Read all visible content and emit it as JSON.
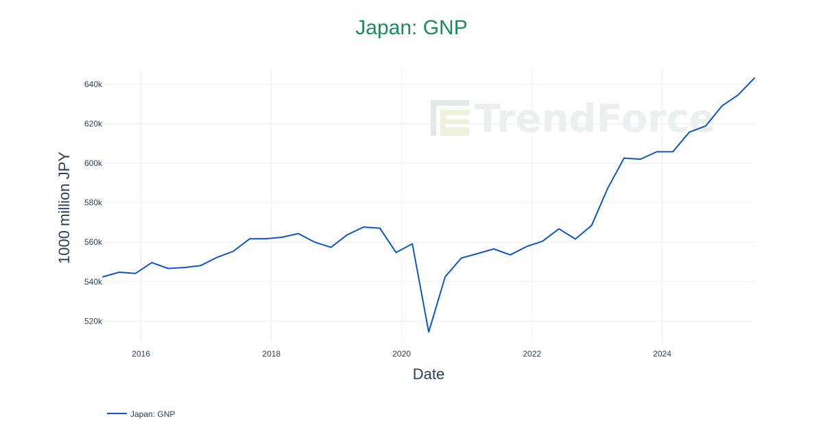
{
  "page": {
    "background": "#ffffff",
    "title_color": "#1d8a5a",
    "line_color": "#0b55c8",
    "grid_color": "#eeeeee",
    "watermark_text": "TrendForce"
  },
  "chart_data": {
    "type": "line",
    "title": "Japan: GNP",
    "xlabel": "Date",
    "ylabel": "1000 million JPY",
    "x_tick_labels": [
      "2016",
      "2018",
      "2020",
      "2022",
      "2024"
    ],
    "y_tick_labels": [
      "520k",
      "540k",
      "560k",
      "580k",
      "600k",
      "620k",
      "640k"
    ],
    "y_ticks": [
      520000,
      540000,
      560000,
      580000,
      600000,
      620000,
      640000
    ],
    "x_ticks": [
      "2016-01-01",
      "2018-01-01",
      "2020-01-01",
      "2022-01-01",
      "2024-01-01"
    ],
    "xlim": [
      "2015-06-01",
      "2025-06-01"
    ],
    "ylim": [
      509000,
      648000
    ],
    "grid": true,
    "legend_position": "bottom-left",
    "series": [
      {
        "name": "Japan: GNP",
        "color": "#0b55c8",
        "x": [
          "2015-06-01",
          "2015-09-01",
          "2015-12-01",
          "2016-03-01",
          "2016-06-01",
          "2016-09-01",
          "2016-12-01",
          "2017-03-01",
          "2017-06-01",
          "2017-09-01",
          "2017-12-01",
          "2018-03-01",
          "2018-06-01",
          "2018-09-01",
          "2018-12-01",
          "2019-03-01",
          "2019-06-01",
          "2019-09-01",
          "2019-12-01",
          "2020-03-01",
          "2020-06-01",
          "2020-09-01",
          "2020-12-01",
          "2021-03-01",
          "2021-06-01",
          "2021-09-01",
          "2021-12-01",
          "2022-03-01",
          "2022-06-01",
          "2022-09-01",
          "2022-12-01",
          "2023-03-01",
          "2023-06-01",
          "2023-09-01",
          "2023-12-01",
          "2024-03-01",
          "2024-06-01",
          "2024-09-01",
          "2024-12-01",
          "2025-03-01",
          "2025-06-01"
        ],
        "y": [
          542500,
          544800,
          544200,
          549700,
          546700,
          547200,
          548200,
          552300,
          555400,
          561700,
          561800,
          562500,
          564400,
          560000,
          557400,
          563700,
          567700,
          567100,
          554800,
          559200,
          514500,
          542500,
          552000,
          554200,
          556600,
          553600,
          557800,
          560500,
          566800,
          561600,
          568500,
          587300,
          602600,
          602100,
          605800,
          605900,
          615800,
          618900,
          629100,
          634600,
          643200
        ]
      }
    ]
  }
}
